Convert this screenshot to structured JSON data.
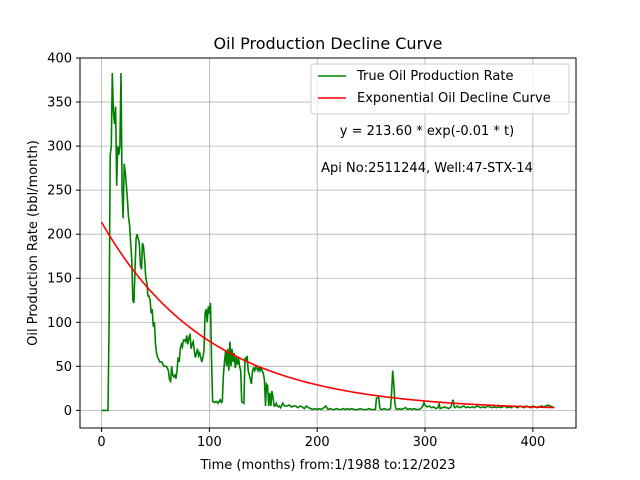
{
  "chart_data": {
    "type": "line",
    "title": "Oil Production Decline Curve",
    "xlabel": "Time (months) from:1/1988 to:12/2023",
    "ylabel": "Oil Production Rate (bbl/month)",
    "xlim": [
      -20,
      440
    ],
    "ylim": [
      -20,
      400
    ],
    "xticks": [
      0,
      100,
      200,
      300,
      400
    ],
    "yticks": [
      0,
      50,
      100,
      150,
      200,
      250,
      300,
      350,
      400
    ],
    "grid": true,
    "legend_position": "top-right",
    "annotations": [
      "y = 213.60 * exp(-0.01 * t)",
      "Api No:2511244, Well:47-STX-14"
    ],
    "series": [
      {
        "name": "True Oil Production Rate",
        "color": "#008000",
        "points": [
          [
            0,
            0
          ],
          [
            6,
            0
          ],
          [
            7,
            100
          ],
          [
            8,
            290
          ],
          [
            9,
            300
          ],
          [
            10,
            383
          ],
          [
            11,
            340
          ],
          [
            12,
            325
          ],
          [
            13,
            345
          ],
          [
            14,
            255
          ],
          [
            15,
            300
          ],
          [
            16,
            290
          ],
          [
            17,
            300
          ],
          [
            18,
            383
          ],
          [
            19,
            250
          ],
          [
            20,
            218
          ],
          [
            21,
            280
          ],
          [
            22,
            270
          ],
          [
            23,
            255
          ],
          [
            24,
            240
          ],
          [
            25,
            220
          ],
          [
            26,
            210
          ],
          [
            27,
            190
          ],
          [
            28,
            170
          ],
          [
            29,
            125
          ],
          [
            30,
            122
          ],
          [
            31,
            160
          ],
          [
            32,
            195
          ],
          [
            33,
            200
          ],
          [
            34,
            195
          ],
          [
            35,
            190
          ],
          [
            36,
            165
          ],
          [
            37,
            160
          ],
          [
            38,
            190
          ],
          [
            39,
            185
          ],
          [
            40,
            170
          ],
          [
            41,
            150
          ],
          [
            42,
            145
          ],
          [
            43,
            130
          ],
          [
            44,
            130
          ],
          [
            45,
            125
          ],
          [
            46,
            110
          ],
          [
            47,
            115
          ],
          [
            48,
            95
          ],
          [
            49,
            100
          ],
          [
            50,
            75
          ],
          [
            51,
            65
          ],
          [
            52,
            60
          ],
          [
            53,
            58
          ],
          [
            54,
            55
          ],
          [
            55,
            55
          ],
          [
            56,
            55
          ],
          [
            57,
            52
          ],
          [
            58,
            50
          ],
          [
            59,
            50
          ],
          [
            60,
            50
          ],
          [
            61,
            48
          ],
          [
            62,
            45
          ],
          [
            63,
            35
          ],
          [
            64,
            33
          ],
          [
            65,
            50
          ],
          [
            66,
            40
          ],
          [
            67,
            38
          ],
          [
            68,
            40
          ],
          [
            69,
            36
          ],
          [
            70,
            45
          ],
          [
            71,
            60
          ],
          [
            72,
            55
          ],
          [
            73,
            70
          ],
          [
            74,
            75
          ],
          [
            75,
            72
          ],
          [
            76,
            80
          ],
          [
            77,
            80
          ],
          [
            78,
            78
          ],
          [
            79,
            85
          ],
          [
            80,
            75
          ],
          [
            81,
            82
          ],
          [
            82,
            87
          ],
          [
            83,
            70
          ],
          [
            84,
            75
          ],
          [
            85,
            78
          ],
          [
            86,
            68
          ],
          [
            87,
            60
          ],
          [
            88,
            65
          ],
          [
            89,
            70
          ],
          [
            90,
            62
          ],
          [
            91,
            65
          ],
          [
            92,
            60
          ],
          [
            93,
            55
          ],
          [
            94,
            60
          ],
          [
            95,
            68
          ],
          [
            96,
            110
          ],
          [
            97,
            115
          ],
          [
            98,
            100
          ],
          [
            99,
            118
          ],
          [
            100,
            110
          ],
          [
            101,
            122
          ],
          [
            102,
            60
          ],
          [
            103,
            10
          ],
          [
            104,
            10
          ],
          [
            105,
            9
          ],
          [
            106,
            10
          ],
          [
            107,
            10
          ],
          [
            108,
            8
          ],
          [
            109,
            10
          ],
          [
            110,
            12
          ],
          [
            111,
            9
          ],
          [
            112,
            10
          ],
          [
            113,
            40
          ],
          [
            114,
            55
          ],
          [
            115,
            68
          ],
          [
            116,
            50
          ],
          [
            117,
            70
          ],
          [
            118,
            45
          ],
          [
            119,
            78
          ],
          [
            120,
            50
          ],
          [
            121,
            70
          ],
          [
            122,
            55
          ],
          [
            123,
            65
          ],
          [
            124,
            48
          ],
          [
            125,
            60
          ],
          [
            126,
            52
          ],
          [
            127,
            60
          ],
          [
            128,
            50
          ],
          [
            129,
            45
          ],
          [
            130,
            10
          ],
          [
            131,
            9
          ],
          [
            132,
            8
          ],
          [
            133,
            60
          ],
          [
            134,
            55
          ],
          [
            135,
            62
          ],
          [
            136,
            45
          ],
          [
            137,
            40
          ],
          [
            138,
            35
          ],
          [
            139,
            30
          ],
          [
            140,
            45
          ],
          [
            141,
            48
          ],
          [
            142,
            45
          ],
          [
            143,
            50
          ],
          [
            144,
            48
          ],
          [
            145,
            45
          ],
          [
            146,
            50
          ],
          [
            147,
            45
          ],
          [
            148,
            48
          ],
          [
            149,
            45
          ],
          [
            150,
            42
          ],
          [
            151,
            35
          ],
          [
            152,
            5
          ],
          [
            153,
            30
          ],
          [
            154,
            28
          ],
          [
            155,
            5
          ],
          [
            156,
            20
          ],
          [
            157,
            5
          ],
          [
            158,
            22
          ],
          [
            159,
            15
          ],
          [
            160,
            5
          ],
          [
            161,
            5
          ],
          [
            162,
            8
          ],
          [
            163,
            5
          ],
          [
            164,
            4
          ],
          [
            165,
            5
          ],
          [
            166,
            3
          ],
          [
            167,
            5
          ],
          [
            168,
            8
          ],
          [
            169,
            6
          ],
          [
            170,
            5
          ],
          [
            172,
            5
          ],
          [
            174,
            6
          ],
          [
            176,
            4
          ],
          [
            178,
            5
          ],
          [
            180,
            5
          ],
          [
            182,
            3
          ],
          [
            184,
            5
          ],
          [
            186,
            4
          ],
          [
            188,
            2
          ],
          [
            190,
            5
          ],
          [
            192,
            3
          ],
          [
            194,
            2
          ],
          [
            196,
            1
          ],
          [
            198,
            2
          ],
          [
            200,
            1
          ],
          [
            202,
            2
          ],
          [
            204,
            1
          ],
          [
            206,
            3
          ],
          [
            208,
            5
          ],
          [
            209,
            3
          ],
          [
            210,
            1
          ],
          [
            212,
            2
          ],
          [
            214,
            1
          ],
          [
            216,
            1
          ],
          [
            218,
            2
          ],
          [
            220,
            1
          ],
          [
            222,
            1
          ],
          [
            224,
            2
          ],
          [
            226,
            1
          ],
          [
            228,
            2
          ],
          [
            230,
            1
          ],
          [
            232,
            2
          ],
          [
            234,
            1
          ],
          [
            236,
            1
          ],
          [
            238,
            1
          ],
          [
            240,
            2
          ],
          [
            242,
            1
          ],
          [
            244,
            1
          ],
          [
            246,
            1
          ],
          [
            248,
            2
          ],
          [
            250,
            1
          ],
          [
            252,
            1
          ],
          [
            254,
            1
          ],
          [
            255,
            14
          ],
          [
            256,
            14
          ],
          [
            257,
            15
          ],
          [
            258,
            3
          ],
          [
            259,
            1
          ],
          [
            260,
            1
          ],
          [
            262,
            2
          ],
          [
            264,
            1
          ],
          [
            266,
            1
          ],
          [
            268,
            2
          ],
          [
            269,
            20
          ],
          [
            270,
            45
          ],
          [
            271,
            30
          ],
          [
            272,
            8
          ],
          [
            273,
            2
          ],
          [
            274,
            1
          ],
          [
            276,
            2
          ],
          [
            278,
            1
          ],
          [
            280,
            2
          ],
          [
            282,
            3
          ],
          [
            284,
            1
          ],
          [
            286,
            2
          ],
          [
            288,
            1
          ],
          [
            290,
            2
          ],
          [
            292,
            1
          ],
          [
            294,
            1
          ],
          [
            296,
            2
          ],
          [
            298,
            5
          ],
          [
            299,
            9
          ],
          [
            300,
            6
          ],
          [
            302,
            4
          ],
          [
            304,
            5
          ],
          [
            306,
            3
          ],
          [
            308,
            4
          ],
          [
            310,
            2
          ],
          [
            312,
            3
          ],
          [
            313,
            8
          ],
          [
            314,
            2
          ],
          [
            316,
            3
          ],
          [
            318,
            4
          ],
          [
            320,
            3
          ],
          [
            322,
            2
          ],
          [
            324,
            4
          ],
          [
            325,
            8
          ],
          [
            326,
            12
          ],
          [
            327,
            4
          ],
          [
            328,
            3
          ],
          [
            330,
            5
          ],
          [
            332,
            3
          ],
          [
            334,
            4
          ],
          [
            336,
            5
          ],
          [
            338,
            3
          ],
          [
            340,
            4
          ],
          [
            342,
            3
          ],
          [
            344,
            4
          ],
          [
            346,
            3
          ],
          [
            348,
            5
          ],
          [
            350,
            4
          ],
          [
            352,
            3
          ],
          [
            354,
            4
          ],
          [
            356,
            3
          ],
          [
            358,
            5
          ],
          [
            360,
            4
          ],
          [
            362,
            3
          ],
          [
            364,
            4
          ],
          [
            366,
            3
          ],
          [
            368,
            4
          ],
          [
            370,
            3
          ],
          [
            372,
            4
          ],
          [
            374,
            5
          ],
          [
            376,
            3
          ],
          [
            378,
            4
          ],
          [
            380,
            3
          ],
          [
            382,
            5
          ],
          [
            384,
            4
          ],
          [
            386,
            3
          ],
          [
            388,
            5
          ],
          [
            390,
            4
          ],
          [
            392,
            3
          ],
          [
            394,
            5
          ],
          [
            396,
            4
          ],
          [
            398,
            3
          ],
          [
            400,
            5
          ],
          [
            402,
            4
          ],
          [
            404,
            3
          ],
          [
            406,
            4
          ],
          [
            408,
            5
          ],
          [
            410,
            4
          ],
          [
            412,
            5
          ],
          [
            414,
            6
          ],
          [
            416,
            5
          ],
          [
            418,
            4
          ],
          [
            419,
            4
          ]
        ]
      },
      {
        "name": "Exponential Oil Decline Curve",
        "color": "#ff0000",
        "function": {
          "a": 213.6,
          "b": -0.01
        },
        "x_range": [
          0,
          420
        ]
      }
    ]
  }
}
